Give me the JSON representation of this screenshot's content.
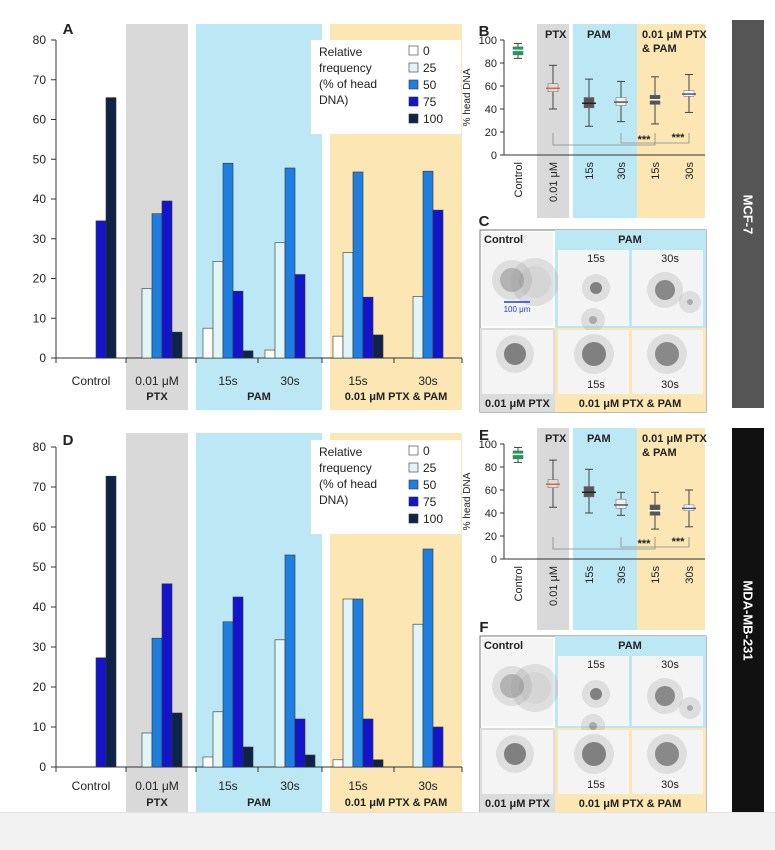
{
  "colors": {
    "c0": "#ffffff",
    "c25": "#dff5f7",
    "c50": "#1f7fe0",
    "c75": "#1414cc",
    "c100": "#0f2348",
    "grey_bg": "#d9d9d9",
    "blue_bg": "#bce8f6",
    "tan_bg": "#fbe6b4",
    "control_marker": "#14a050",
    "ptx_median": "#e0643c",
    "pam_box": "#555555",
    "mcf7_tab": "#555555",
    "mda_tab": "#111111"
  },
  "legend": {
    "title_lines": [
      "Relative",
      "frequency",
      "(% of head",
      "DNA)"
    ],
    "entries": [
      "0",
      "25",
      "50",
      "75",
      "100"
    ]
  },
  "panels": {
    "A": "A",
    "B": "B",
    "C": "C",
    "D": "D",
    "E": "E",
    "F": "F"
  },
  "side_labels": {
    "top": "MCF-7",
    "bottom": "MDA-MB-231"
  },
  "images": {
    "control": "Control",
    "pam": "PAM",
    "ptx": "0.01 μM PTX",
    "combo": "0.01 μM PTX & PAM",
    "t15": "15s",
    "t30": "30s",
    "scale_bar": "100 μm"
  },
  "chart_data": [
    {
      "id": "A",
      "type": "bar",
      "ylim": [
        0,
        80
      ],
      "yticks": [
        0,
        10,
        20,
        30,
        40,
        50,
        60,
        70,
        80
      ],
      "categories": [
        "Control",
        "0.01 μM",
        "15s",
        "30s",
        "15s",
        "30s"
      ],
      "group_labels": [
        "PTX",
        "PAM",
        "0.01 μM PTX & PAM"
      ],
      "series": [
        {
          "name": "0",
          "values": [
            0,
            0,
            7.5,
            2,
            5.5,
            0
          ]
        },
        {
          "name": "25",
          "values": [
            0,
            17.5,
            24.3,
            29,
            26.5,
            15.5
          ]
        },
        {
          "name": "50",
          "values": [
            0,
            36.3,
            49,
            47.8,
            46.8,
            47
          ]
        },
        {
          "name": "75",
          "values": [
            34.5,
            39.5,
            16.8,
            21,
            15.3,
            37.2
          ]
        },
        {
          "name": "100",
          "values": [
            65.5,
            6.5,
            1.8,
            0,
            5.8,
            0
          ]
        }
      ]
    },
    {
      "id": "D",
      "type": "bar",
      "ylim": [
        0,
        80
      ],
      "yticks": [
        0,
        10,
        20,
        30,
        40,
        50,
        60,
        70,
        80
      ],
      "categories": [
        "Control",
        "0.01 μM",
        "15s",
        "30s",
        "15s",
        "30s"
      ],
      "group_labels": [
        "PTX",
        "PAM",
        "0.01 μM PTX & PAM"
      ],
      "series": [
        {
          "name": "0",
          "values": [
            0,
            0,
            2.5,
            0,
            1.8,
            0
          ]
        },
        {
          "name": "25",
          "values": [
            0,
            8.5,
            13.8,
            31.8,
            42,
            35.7
          ]
        },
        {
          "name": "50",
          "values": [
            0,
            32.2,
            36.3,
            53,
            42,
            54.5
          ]
        },
        {
          "name": "75",
          "values": [
            27.3,
            45.8,
            42.5,
            12,
            12,
            10
          ]
        },
        {
          "name": "100",
          "values": [
            72.7,
            13.5,
            5,
            3,
            1.8,
            0
          ]
        }
      ]
    },
    {
      "id": "B",
      "type": "box",
      "ylabel": "% head DNA",
      "ylim": [
        0,
        100
      ],
      "yticks": [
        0,
        20,
        40,
        60,
        80,
        100
      ],
      "categories": [
        "Control",
        "0.01 μM",
        "15s",
        "30s",
        "15s",
        "30s"
      ],
      "group_labels": [
        "PTX",
        "PAM",
        "0.01 μM PTX & PAM"
      ],
      "boxes": [
        {
          "min": 84,
          "q1": 87,
          "median": 91,
          "q3": 94,
          "max": 97
        },
        {
          "min": 40,
          "q1": 55,
          "median": 58,
          "q3": 62,
          "max": 78
        },
        {
          "min": 25,
          "q1": 41,
          "median": 45,
          "q3": 50,
          "max": 66
        },
        {
          "min": 29,
          "q1": 43,
          "median": 46,
          "q3": 50,
          "max": 64
        },
        {
          "min": 27,
          "q1": 44,
          "median": 48,
          "q3": 52,
          "max": 68
        },
        {
          "min": 37,
          "q1": 51,
          "median": 53,
          "q3": 56,
          "max": 70
        }
      ],
      "annotations": [
        "***",
        "***"
      ]
    },
    {
      "id": "E",
      "type": "box",
      "ylabel": "% head DNA",
      "ylim": [
        0,
        100
      ],
      "yticks": [
        0,
        20,
        40,
        60,
        80,
        100
      ],
      "categories": [
        "Control",
        "0.01 μM",
        "15s",
        "30s",
        "15s",
        "30s"
      ],
      "group_labels": [
        "PTX",
        "PAM",
        "0.01 μM PTX & PAM"
      ],
      "boxes": [
        {
          "min": 84,
          "q1": 87,
          "median": 91,
          "q3": 94,
          "max": 97
        },
        {
          "min": 45,
          "q1": 62,
          "median": 65,
          "q3": 69,
          "max": 86
        },
        {
          "min": 40,
          "q1": 54,
          "median": 58,
          "q3": 63,
          "max": 78
        },
        {
          "min": 38,
          "q1": 44,
          "median": 47,
          "q3": 52,
          "max": 58
        },
        {
          "min": 26,
          "q1": 38,
          "median": 42,
          "q3": 47,
          "max": 58
        },
        {
          "min": 28,
          "q1": 42,
          "median": 44,
          "q3": 47,
          "max": 60
        }
      ],
      "annotations": [
        "***",
        "***"
      ]
    }
  ]
}
